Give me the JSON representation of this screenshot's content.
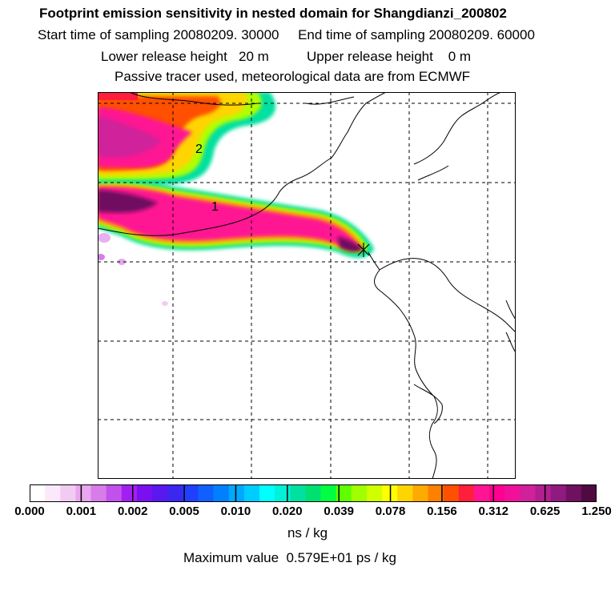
{
  "header": {
    "title": "Footprint emission sensitivity in nested domain for Shangdianzi_200802",
    "sampling": "Start time of sampling 20080209. 30000     End time of sampling 20080209. 60000",
    "release": "Lower release height   20 m          Upper release height    0 m",
    "tracer": "Passive tracer used, meteorological data are from ECMWF"
  },
  "map": {
    "contour_labels": [
      "2",
      "1"
    ],
    "receptor": "Shangdianzi"
  },
  "colorbar": {
    "ticks": [
      "0.000",
      "0.001",
      "0.002",
      "0.005",
      "0.010",
      "0.020",
      "0.039",
      "0.078",
      "0.156",
      "0.312",
      "0.625",
      "1.250"
    ],
    "colors": [
      "#ffffff",
      "#fbe8fb",
      "#f2cbf2",
      "#e7a6ee",
      "#d77ce8",
      "#c250ec",
      "#a21ff2",
      "#7a10f0",
      "#5a18f0",
      "#3a28f0",
      "#2040ff",
      "#1060ff",
      "#0080ff",
      "#00a8ff",
      "#00ccff",
      "#00ffff",
      "#00f0d8",
      "#00e0a0",
      "#00e070",
      "#00ff40",
      "#60ff00",
      "#a0ff00",
      "#d0ff00",
      "#ffff00",
      "#ffd400",
      "#ffaa00",
      "#ff8000",
      "#ff5000",
      "#ff1e3c",
      "#ff1493",
      "#ff0090",
      "#f0109a",
      "#d0209a",
      "#b0208e",
      "#901a80",
      "#701060",
      "#500a40"
    ],
    "unit": "ns / kg",
    "max_value": "Maximum value  0.579E+01 ps / kg"
  }
}
